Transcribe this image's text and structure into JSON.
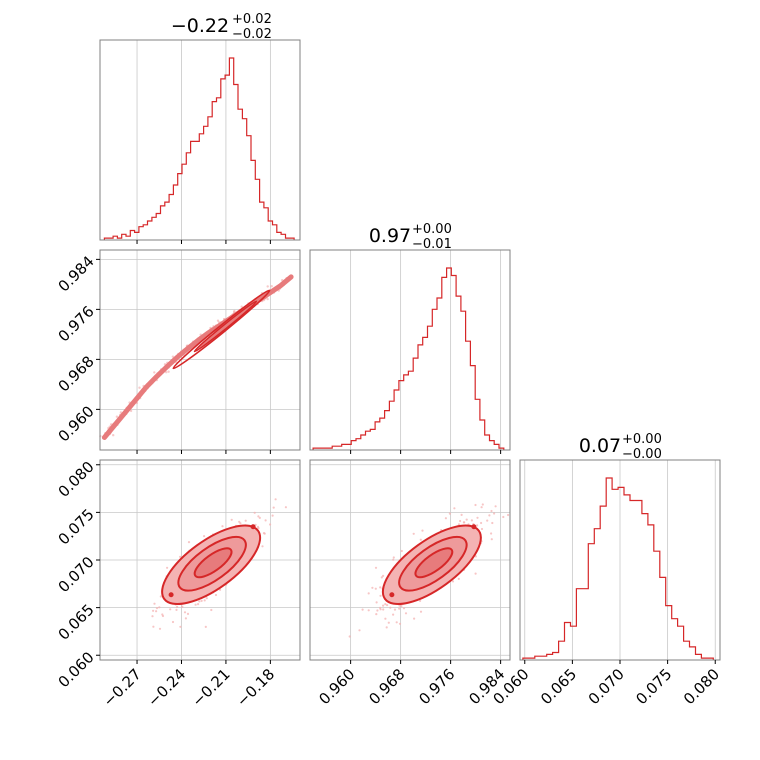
{
  "figure": {
    "kind": "corner plot",
    "colors": {
      "accent": "#d62728",
      "fill_light": "#f4b3b3",
      "fill_mid": "#e77b7c",
      "grid": "#c8c8c8",
      "frame": "#808080"
    }
  },
  "chart_data": [
    {
      "type": "histogram",
      "panel": "param1",
      "title": {
        "main": "−0.22",
        "sup": "+0.02",
        "sub": "−0.02"
      },
      "x_range": [
        -0.295,
        -0.16
      ],
      "edges_range": [
        -0.292,
        -0.164
      ],
      "values": [
        1,
        1,
        2,
        1,
        3,
        2,
        5,
        4,
        7,
        8,
        10,
        12,
        14,
        18,
        20,
        24,
        29,
        35,
        40,
        46,
        52,
        52,
        56,
        60,
        65,
        73,
        75,
        85,
        87,
        96,
        82,
        69,
        64,
        55,
        42,
        32,
        20,
        17,
        10,
        8,
        4,
        3,
        1,
        1
      ],
      "xticks": [
        -0.27,
        -0.24,
        -0.21,
        -0.18
      ],
      "grid": true
    },
    {
      "type": "histogram",
      "panel": "param2",
      "title": {
        "main": "0.97",
        "sup": "+0.00",
        "sub": "−0.01"
      },
      "x_range": [
        0.9535,
        0.9855
      ],
      "edges_range": [
        0.954,
        0.9845
      ],
      "values": [
        1,
        1,
        1,
        1,
        2,
        2,
        3,
        3,
        5,
        6,
        8,
        10,
        11,
        15,
        17,
        21,
        26,
        32,
        37,
        40,
        42,
        49,
        56,
        60,
        66,
        75,
        81,
        92,
        97,
        93,
        82,
        74,
        58,
        45,
        27,
        16,
        8,
        5,
        3,
        1
      ],
      "xticks": [
        0.96,
        0.968,
        0.976,
        0.984
      ],
      "xtick_labels": [
        "0.960",
        "0.968",
        "0.976",
        "0.984"
      ],
      "grid": true
    },
    {
      "type": "histogram",
      "panel": "param3",
      "title": {
        "main": "0.07",
        "sup": "+0.00",
        "sub": "−0.00"
      },
      "x_range": [
        0.0595,
        0.0805
      ],
      "edges_range": [
        0.0598,
        0.0798
      ],
      "values": [
        1,
        1,
        2,
        2,
        3,
        4,
        10,
        20,
        18,
        38,
        38,
        62,
        70,
        82,
        97,
        91,
        92,
        88,
        85,
        85,
        78,
        72,
        58,
        44,
        29,
        22,
        18,
        10,
        7,
        3,
        1,
        1
      ],
      "xticks": [
        0.06,
        0.065,
        0.07,
        0.075,
        0.08
      ],
      "xtick_labels": [
        "0.060",
        "0.065",
        "0.070",
        "0.075",
        "0.080"
      ],
      "grid": true
    },
    {
      "type": "scatter",
      "panel": "param1-vs-param2",
      "x_range": [
        -0.295,
        -0.16
      ],
      "y_range": [
        0.9535,
        0.9855
      ],
      "yticks": [
        0.96,
        0.968,
        0.976,
        0.984
      ],
      "ytick_labels": [
        "0.960",
        "0.968",
        "0.976",
        "0.984"
      ],
      "relation": "tight positive correlation",
      "points": [
        [
          -0.292,
          0.9555
        ],
        [
          -0.285,
          0.9575
        ],
        [
          -0.278,
          0.9595
        ],
        [
          -0.271,
          0.9615
        ],
        [
          -0.264,
          0.9635
        ],
        [
          -0.257,
          0.9652
        ],
        [
          -0.25,
          0.9668
        ],
        [
          -0.243,
          0.9683
        ],
        [
          -0.236,
          0.9697
        ],
        [
          -0.229,
          0.971
        ],
        [
          -0.222,
          0.9722
        ],
        [
          -0.215,
          0.9733
        ],
        [
          -0.208,
          0.9744
        ],
        [
          -0.201,
          0.9755
        ],
        [
          -0.194,
          0.9766
        ],
        [
          -0.187,
          0.9776
        ],
        [
          -0.18,
          0.9787
        ],
        [
          -0.173,
          0.9798
        ],
        [
          -0.166,
          0.9812
        ]
      ],
      "grid": true
    },
    {
      "type": "scatter",
      "panel": "param1-vs-param3",
      "x_range": [
        -0.295,
        -0.16
      ],
      "y_range": [
        0.0595,
        0.0805
      ],
      "yticks": [
        0.06,
        0.065,
        0.07,
        0.075,
        0.08
      ],
      "ytick_labels": [
        "0.060",
        "0.065",
        "0.070",
        "0.075",
        "0.080"
      ],
      "xticks": [
        -0.27,
        -0.24,
        -0.21,
        -0.18
      ],
      "xtick_labels": [
        "−0.27",
        "−0.24",
        "−0.21",
        "−0.18"
      ],
      "relation": "positive correlation",
      "center": [
        -0.22,
        0.0695
      ],
      "grid": true
    },
    {
      "type": "scatter",
      "panel": "param2-vs-param3",
      "x_range": [
        0.9535,
        0.9855
      ],
      "y_range": [
        0.0595,
        0.0805
      ],
      "relation": "positive correlation",
      "center": [
        0.973,
        0.0695
      ],
      "grid": true
    }
  ]
}
